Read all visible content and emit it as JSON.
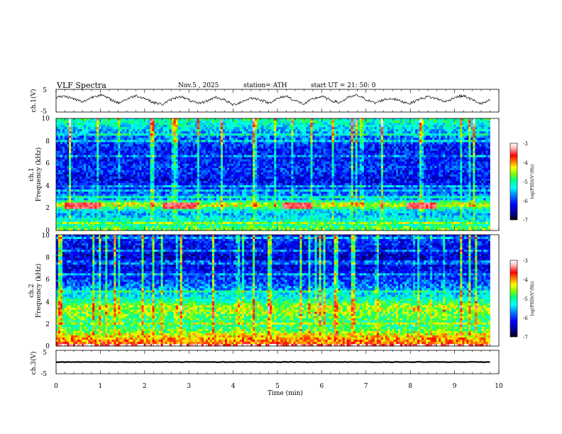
{
  "header": {
    "title": "VLF  Spectra",
    "date": "Nov.5  , 2025",
    "station": "station= ATH",
    "start_ut": "start  UT  =   21: 50: 0"
  },
  "colors": {
    "background": "#ffffff",
    "waveform": "#000000",
    "colormap": [
      "#000000",
      "#00008b",
      "#0000ff",
      "#0080ff",
      "#00ffff",
      "#00ff80",
      "#80ff00",
      "#ffff00",
      "#ff8000",
      "#ff0000",
      "#ffc0c0",
      "#ffffff"
    ]
  },
  "chart_data": [
    {
      "type": "line",
      "name": "ch1-waveform",
      "ylabel": "ch.1(V)",
      "ylim": [
        -5,
        5
      ],
      "yticks": [
        "5",
        "-5"
      ],
      "xlim": [
        0,
        10
      ],
      "xlabel": "",
      "data_end_min": 9.8,
      "description_values": [
        1.4,
        2.0,
        0.8,
        -0.6,
        1.5,
        2.7,
        0.9,
        -1.0,
        0.7,
        2.3,
        1.1,
        -0.8,
        -1.6,
        0.5,
        2.0,
        0.3,
        -1.3,
        -0.2,
        1.6,
        0.4,
        -1.9,
        -0.4,
        1.2,
        0.6,
        -1.0,
        0.9,
        2.1,
        0.0,
        -1.5,
        0.8,
        1.9,
        0.2,
        -0.9,
        1.4,
        2.4,
        0.6,
        -1.1,
        0.5,
        1.0,
        -0.3,
        -1.2,
        0.7,
        1.8,
        0.9,
        -0.5,
        1.5,
        2.2,
        0.4,
        -1.4,
        0.1
      ]
    },
    {
      "type": "heatmap",
      "name": "ch1-spectrogram",
      "ylabel": "ch.1\nFrequency (kHz)",
      "ylim": [
        0,
        10
      ],
      "yticks": [
        "0",
        "2",
        "4",
        "6",
        "8",
        "10"
      ],
      "xlim": [
        0,
        10
      ],
      "data_end_min": 9.8,
      "colorbar": {
        "label": "log(PSD)(V²/Hz)",
        "range": [
          -7,
          -3
        ],
        "ticks": [
          "-3",
          "-4",
          "-5",
          "-6",
          "-7"
        ]
      },
      "band_profile_khz": [
        {
          "f": 0.0,
          "level": -4.6
        },
        {
          "f": 0.5,
          "level": -5.0
        },
        {
          "f": 1.0,
          "level": -5.2
        },
        {
          "f": 1.5,
          "level": -5.6
        },
        {
          "f": 2.0,
          "level": -5.0
        },
        {
          "f": 2.3,
          "level": -4.2
        },
        {
          "f": 2.8,
          "level": -5.6
        },
        {
          "f": 3.5,
          "level": -5.9
        },
        {
          "f": 4.5,
          "level": -6.3
        },
        {
          "f": 5.5,
          "level": -6.0
        },
        {
          "f": 6.5,
          "level": -6.2
        },
        {
          "f": 7.5,
          "level": -6.1
        },
        {
          "f": 8.5,
          "level": -5.7
        },
        {
          "f": 9.5,
          "level": -5.2
        },
        {
          "f": 10.0,
          "level": -5.0
        }
      ],
      "red_bursts_min": [
        [
          0.2,
          1.0
        ],
        [
          2.4,
          3.2
        ],
        [
          5.1,
          5.8
        ],
        [
          7.9,
          8.6
        ]
      ]
    },
    {
      "type": "heatmap",
      "name": "ch2-spectrogram",
      "ylabel": "ch.2\nFrequency (kHz)",
      "ylim": [
        0,
        10
      ],
      "yticks": [
        "0",
        "2",
        "4",
        "6",
        "8",
        "10"
      ],
      "xlim": [
        0,
        10
      ],
      "data_end_min": 9.8,
      "colorbar": {
        "label": "log(PSD)(V²/Hz)",
        "range": [
          -7,
          -3
        ],
        "ticks": [
          "-3",
          "-4",
          "-5",
          "-6",
          "-7"
        ]
      },
      "band_profile_khz": [
        {
          "f": 0.0,
          "level": -3.8
        },
        {
          "f": 0.6,
          "level": -4.0
        },
        {
          "f": 1.0,
          "level": -4.3
        },
        {
          "f": 1.5,
          "level": -4.8
        },
        {
          "f": 2.0,
          "level": -5.0
        },
        {
          "f": 2.5,
          "level": -4.8
        },
        {
          "f": 3.0,
          "level": -4.6
        },
        {
          "f": 3.5,
          "level": -4.5
        },
        {
          "f": 4.0,
          "level": -5.0
        },
        {
          "f": 4.5,
          "level": -5.3
        },
        {
          "f": 5.0,
          "level": -5.6
        },
        {
          "f": 6.0,
          "level": -6.0
        },
        {
          "f": 7.0,
          "level": -6.3
        },
        {
          "f": 8.0,
          "level": -6.4
        },
        {
          "f": 9.0,
          "level": -6.2
        },
        {
          "f": 10.0,
          "level": -6.0
        }
      ]
    },
    {
      "type": "line",
      "name": "ch3-waveform",
      "ylabel": "ch.3(V)",
      "ylim": [
        -5,
        5
      ],
      "yticks": [
        "5",
        "-5"
      ],
      "xlim": [
        0,
        10
      ],
      "xlabel": "Time  (min)",
      "xticks": [
        "0",
        "1",
        "2",
        "3",
        "4",
        "5",
        "6",
        "7",
        "8",
        "9",
        "10"
      ],
      "data_end_min": 9.8,
      "constant_value": 0.0
    }
  ]
}
